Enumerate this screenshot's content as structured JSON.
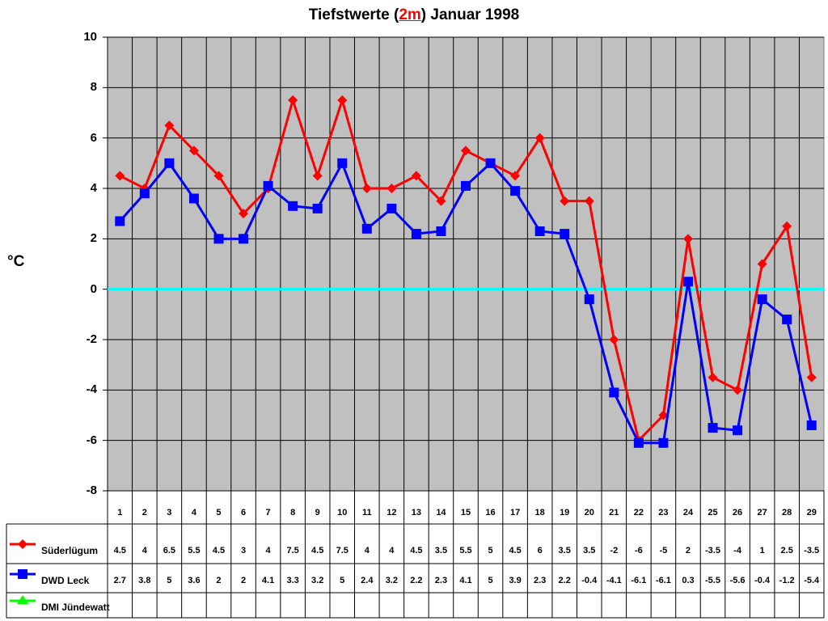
{
  "chart_data": {
    "type": "line",
    "title": "Tiefstwerte (2m) Januar 1998",
    "title_parts": [
      "Tiefstwerte (",
      "2m",
      ") Januar 1998"
    ],
    "xlabel": "",
    "ylabel": "°C",
    "ylim": [
      -8,
      10
    ],
    "yticks": [
      "10",
      "8",
      "6",
      "4",
      "2",
      "0",
      "-2",
      "-4",
      "-6",
      "-8"
    ],
    "grid": true,
    "zero_line_color": "#00ffff",
    "plot_background": "#c0c0c0",
    "legend_position": "data-table-bottom",
    "categories": [
      "1",
      "2",
      "3",
      "4",
      "5",
      "6",
      "7",
      "8",
      "9",
      "10",
      "11",
      "12",
      "13",
      "14",
      "15",
      "16",
      "17",
      "18",
      "19",
      "20",
      "21",
      "22",
      "23",
      "24",
      "25",
      "26",
      "27",
      "28",
      "29"
    ],
    "series": [
      {
        "name": "Süderlügum",
        "color": "#ff0000",
        "marker": "diamond",
        "values": [
          4.5,
          4,
          6.5,
          5.5,
          4.5,
          3,
          4,
          7.5,
          4.5,
          7.5,
          4,
          4,
          4.5,
          3.5,
          5.5,
          5,
          4.5,
          6,
          3.5,
          3.5,
          -2,
          -6,
          -5,
          2,
          -3.5,
          -4,
          1,
          2.5,
          -3.5
        ],
        "labels": [
          "4.5",
          "4",
          "6.5",
          "5.5",
          "4.5",
          "3",
          "4",
          "7.5",
          "4.5",
          "7.5",
          "4",
          "4",
          "4.5",
          "3.5",
          "5.5",
          "5",
          "4.5",
          "6",
          "3.5",
          "3.5",
          "-2",
          "-6",
          "-5",
          "2",
          "-3.5",
          "-4",
          "1",
          "2.5",
          "-3.5"
        ]
      },
      {
        "name": "DWD Leck",
        "color": "#0000ff",
        "marker": "square",
        "values": [
          2.7,
          3.8,
          5,
          3.6,
          2,
          2,
          4.1,
          3.3,
          3.2,
          5,
          2.4,
          3.2,
          2.2,
          2.3,
          4.1,
          5,
          3.9,
          2.3,
          2.2,
          -0.4,
          -4.1,
          -6.1,
          -6.1,
          0.3,
          -5.5,
          -5.6,
          -0.4,
          -1.2,
          -5.4
        ],
        "labels": [
          "2.7",
          "3.8",
          "5",
          "3.6",
          "2",
          "2",
          "4.1",
          "3.3",
          "3.2",
          "5",
          "2.4",
          "3.2",
          "2.2",
          "2.3",
          "4.1",
          "5",
          "3.9",
          "2.3",
          "2.2",
          "-0.4",
          "-4.1",
          "-6.1",
          "-6.1",
          "0.3",
          "-5.5",
          "-5.6",
          "-0.4",
          "-1.2",
          "-5.4"
        ]
      },
      {
        "name": "DMI Jündewatt",
        "color": "#00ff00",
        "marker": "triangle",
        "values": [],
        "labels": []
      }
    ]
  }
}
